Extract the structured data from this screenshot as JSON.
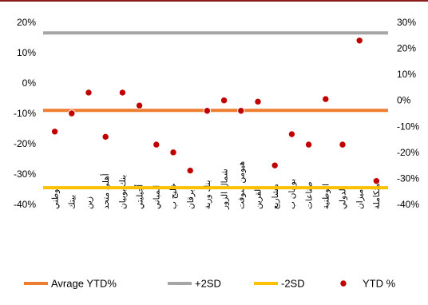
{
  "chart_data": {
    "type": "line",
    "categories": [
      "وطني",
      "بيتك",
      "زين",
      "أهلي متحد",
      "بنك بوبيان",
      "أجيليتي",
      "المباني",
      "خليج ب",
      "برقان",
      "بنك وربة",
      "شمال الزور",
      "هيومن سوفت",
      "القرين",
      "مشاريع",
      "بوبيان ب",
      "صناعات",
      "الوطنية",
      "الدولي",
      "ميزان",
      "المتكاملة"
    ],
    "series": [
      {
        "name": "Avrage YTD%",
        "type": "line",
        "color": "#ED7D31",
        "axis": "left",
        "values": [
          -9,
          -9,
          -9,
          -9,
          -9,
          -9,
          -9,
          -9,
          -9,
          -9,
          -9,
          -9,
          -9,
          -9,
          -9,
          -9,
          -9,
          -9,
          -9,
          -9
        ]
      },
      {
        "name": "+2SD",
        "type": "line",
        "color": "#A5A5A5",
        "axis": "left",
        "values": [
          16.5,
          16.5,
          16.5,
          16.5,
          16.5,
          16.5,
          16.5,
          16.5,
          16.5,
          16.5,
          16.5,
          16.5,
          16.5,
          16.5,
          16.5,
          16.5,
          16.5,
          16.5,
          16.5,
          16.5
        ]
      },
      {
        "name": "-2SD",
        "type": "line",
        "color": "#FFC000",
        "axis": "left",
        "values": [
          -34.5,
          -34.5,
          -34.5,
          -34.5,
          -34.5,
          -34.5,
          -34.5,
          -34.5,
          -34.5,
          -34.5,
          -34.5,
          -34.5,
          -34.5,
          -34.5,
          -34.5,
          -34.5,
          -34.5,
          -34.5,
          -34.5,
          -34.5
        ]
      },
      {
        "name": "YTD %",
        "type": "scatter",
        "color": "#C00000",
        "axis": "right",
        "values": [
          -12,
          -5,
          3,
          -14,
          3,
          -2,
          -17,
          -20,
          -27,
          -4,
          0,
          -4,
          -0.5,
          -25,
          -13,
          -17,
          0.5,
          -17,
          23,
          -31
        ]
      }
    ],
    "y_left": {
      "ticks": [
        "-40%",
        "-30%",
        "-20%",
        "-10%",
        "0%",
        "10%",
        "20%"
      ],
      "min": -40,
      "max": 20
    },
    "y_right": {
      "ticks": [
        "-40%",
        "-30%",
        "-20%",
        "-10%",
        "0%",
        "10%",
        "20%",
        "30%"
      ],
      "min": -40,
      "max": 30
    },
    "grid": false,
    "legend_position": "bottom"
  }
}
